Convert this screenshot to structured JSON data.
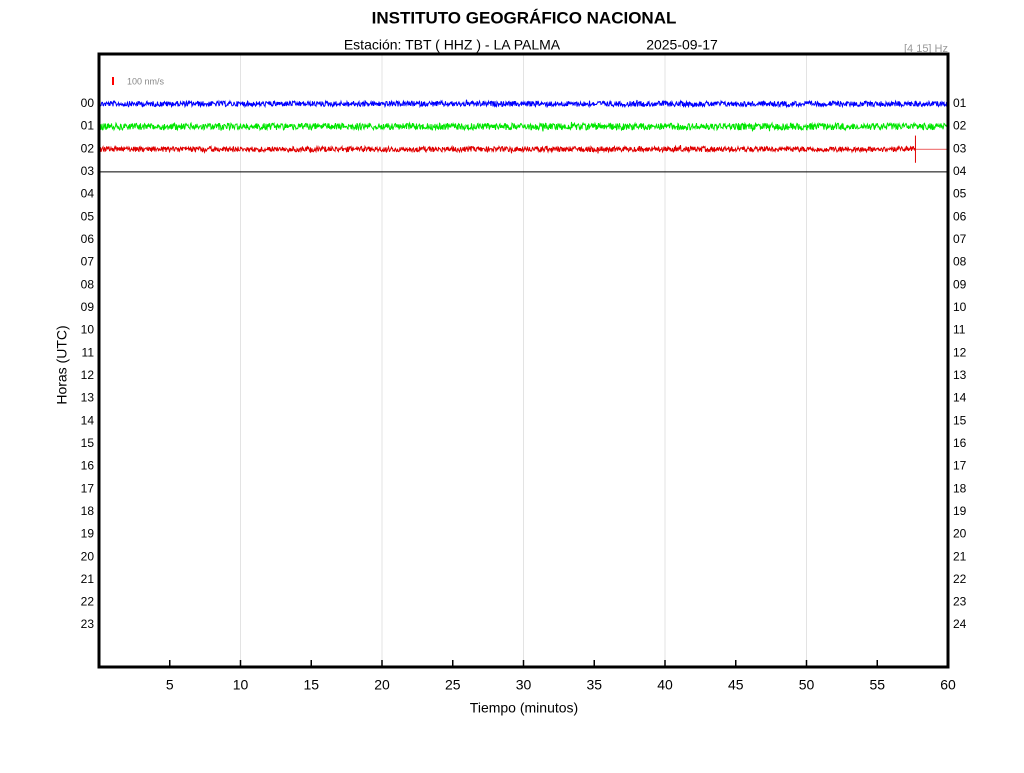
{
  "chart_data": {
    "type": "helicorder",
    "title": "INSTITUTO GEOGRÁFICO NACIONAL",
    "subtitle": "Estación:  TBT ( HHZ ) - LA PALMA",
    "date": "2025-09-17",
    "filter": "[4 15] Hz",
    "scale_label": "100 nm/s",
    "scale_color": "#ff0000",
    "xlabel": "Tiempo (minutos)",
    "ylabel": "Horas (UTC)",
    "xlim": [
      0,
      60
    ],
    "xticks": [
      5,
      10,
      15,
      20,
      25,
      30,
      35,
      40,
      45,
      50,
      55,
      60
    ],
    "xgrid": [
      10,
      20,
      30,
      40,
      50
    ],
    "ylim": [
      -2.2,
      24.85
    ],
    "yticks": [
      {
        "value": 0,
        "label": "00"
      },
      {
        "value": 1,
        "label": "01"
      },
      {
        "value": 2,
        "label": "02"
      },
      {
        "value": 3,
        "label": "03"
      },
      {
        "value": 4,
        "label": "04"
      },
      {
        "value": 5,
        "label": "05"
      },
      {
        "value": 6,
        "label": "06"
      },
      {
        "value": 7,
        "label": "07"
      },
      {
        "value": 8,
        "label": "08"
      },
      {
        "value": 9,
        "label": "09"
      },
      {
        "value": 10,
        "label": "10"
      },
      {
        "value": 11,
        "label": "11"
      },
      {
        "value": 12,
        "label": "12"
      },
      {
        "value": 13,
        "label": "13"
      },
      {
        "value": 14,
        "label": "14"
      },
      {
        "value": 15,
        "label": "15"
      },
      {
        "value": 16,
        "label": "16"
      },
      {
        "value": 17,
        "label": "17"
      },
      {
        "value": 18,
        "label": "18"
      },
      {
        "value": 19,
        "label": "19"
      },
      {
        "value": 20,
        "label": "20"
      },
      {
        "value": 21,
        "label": "21"
      },
      {
        "value": 22,
        "label": "22"
      },
      {
        "value": 23,
        "label": "23"
      }
    ],
    "y2lim": [
      -1.2,
      25.85
    ],
    "y2ticks": [
      {
        "value": 1,
        "label": "01"
      },
      {
        "value": 2,
        "label": "02"
      },
      {
        "value": 3,
        "label": "03"
      },
      {
        "value": 4,
        "label": "04"
      },
      {
        "value": 5,
        "label": "05"
      },
      {
        "value": 6,
        "label": "06"
      },
      {
        "value": 7,
        "label": "07"
      },
      {
        "value": 8,
        "label": "08"
      },
      {
        "value": 9,
        "label": "09"
      },
      10,
      11,
      12,
      13,
      14,
      15,
      16,
      17,
      18,
      19,
      20,
      21,
      22,
      23,
      24
    ],
    "series": [
      {
        "color": "#0000ff",
        "x": [
          0,
          60
        ],
        "amplitude": 0.12
      },
      {
        "color": "#00e600",
        "x": [
          0,
          60
        ],
        "amplitude": 0.15
      },
      {
        "color": "#e00000",
        "x": [
          0,
          57.7
        ],
        "amplitude": 0.12
      },
      {
        "color": "#000000",
        "x": [
          0,
          60
        ],
        "amplitude": 0
      }
    ]
  }
}
